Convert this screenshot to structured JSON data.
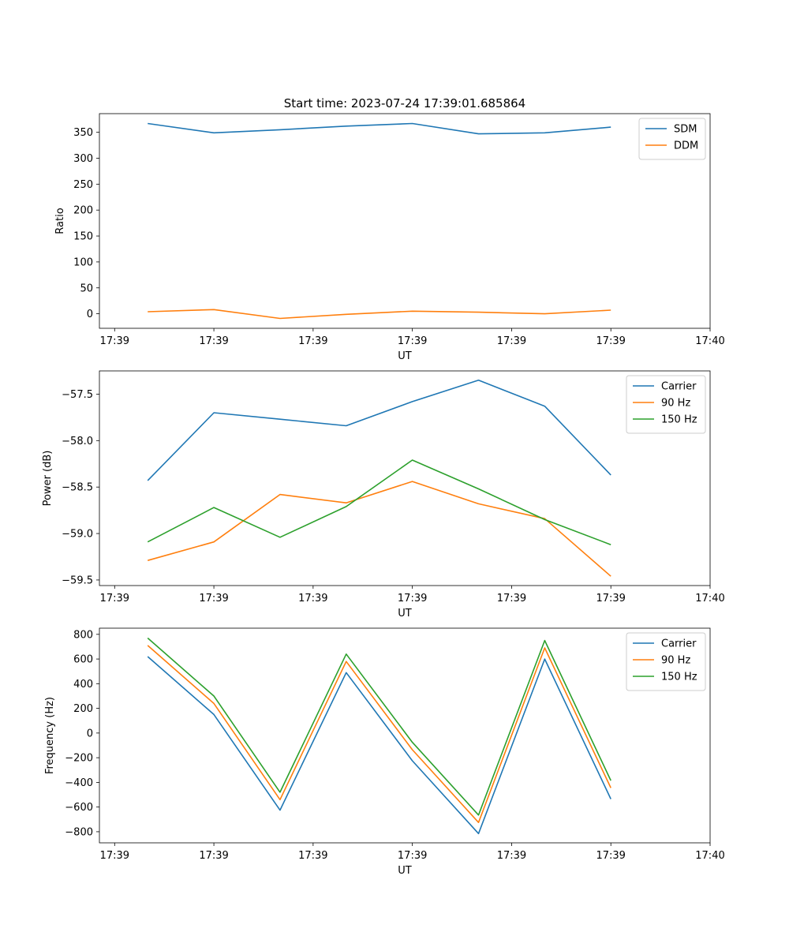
{
  "figure": {
    "title": "Start time: 2023-07-24 17:39:01.685864"
  },
  "colors": {
    "blue": "#1f77b4",
    "orange": "#ff7f0e",
    "green": "#2ca02c"
  },
  "chart_data": [
    {
      "type": "line",
      "title": "Start time: 2023-07-24 17:39:01.685864",
      "xlabel": "UT",
      "ylabel": "Ratio",
      "x": [
        1,
        2,
        3,
        4,
        5,
        6,
        7,
        8
      ],
      "xlim": [
        0.27,
        9.5
      ],
      "ylim": [
        -28,
        386
      ],
      "yticks": [
        0,
        50,
        100,
        150,
        200,
        250,
        300,
        350
      ],
      "xtick_positions": [
        0.5,
        2.0,
        3.5,
        5.0,
        6.5,
        8.0,
        9.5
      ],
      "xtick_labels": [
        "17:39",
        "17:39",
        "17:39",
        "17:39",
        "17:39",
        "17:39",
        "17:40"
      ],
      "legend": "upper right",
      "series": [
        {
          "name": "SDM",
          "color": "#1f77b4",
          "values": [
            367,
            349,
            355,
            362,
            367,
            347,
            349,
            360
          ]
        },
        {
          "name": "DDM",
          "color": "#ff7f0e",
          "values": [
            4,
            8,
            -9,
            -1,
            5,
            3,
            0,
            7
          ]
        }
      ]
    },
    {
      "type": "line",
      "title": "",
      "xlabel": "UT",
      "ylabel": "Power (dB)",
      "x": [
        1,
        2,
        3,
        4,
        5,
        6,
        7,
        8
      ],
      "xlim": [
        0.27,
        9.5
      ],
      "ylim": [
        -59.56,
        -57.25
      ],
      "yticks": [
        -59.5,
        -59.0,
        -58.5,
        -58.0,
        -57.5
      ],
      "ytick_labels": [
        "−59.5",
        "−59.0",
        "−58.5",
        "−58.0",
        "−57.5"
      ],
      "xtick_positions": [
        0.5,
        2.0,
        3.5,
        5.0,
        6.5,
        8.0,
        9.5
      ],
      "xtick_labels": [
        "17:39",
        "17:39",
        "17:39",
        "17:39",
        "17:39",
        "17:39",
        "17:40"
      ],
      "legend": "upper right",
      "series": [
        {
          "name": "Carrier",
          "color": "#1f77b4",
          "values": [
            -58.43,
            -57.7,
            -57.77,
            -57.84,
            -57.58,
            -57.35,
            -57.63,
            -58.37
          ]
        },
        {
          "name": "90 Hz",
          "color": "#ff7f0e",
          "values": [
            -59.29,
            -59.09,
            -58.58,
            -58.67,
            -58.44,
            -58.68,
            -58.84,
            -59.46
          ]
        },
        {
          "name": "150 Hz",
          "color": "#2ca02c",
          "values": [
            -59.09,
            -58.72,
            -59.04,
            -58.71,
            -58.21,
            -58.52,
            -58.85,
            -59.12
          ]
        }
      ]
    },
    {
      "type": "line",
      "title": "",
      "xlabel": "UT",
      "ylabel": "Frequency (Hz)",
      "x": [
        1,
        2,
        3,
        4,
        5,
        6,
        7,
        8
      ],
      "xlim": [
        0.27,
        9.5
      ],
      "ylim": [
        -890,
        850
      ],
      "yticks": [
        -800,
        -600,
        -400,
        -200,
        0,
        200,
        400,
        600,
        800
      ],
      "ytick_labels": [
        "−800",
        "−600",
        "−400",
        "−200",
        "0",
        "200",
        "400",
        "600",
        "800"
      ],
      "xtick_positions": [
        0.5,
        2.0,
        3.5,
        5.0,
        6.5,
        8.0,
        9.5
      ],
      "xtick_labels": [
        "17:39",
        "17:39",
        "17:39",
        "17:39",
        "17:39",
        "17:39",
        "17:40"
      ],
      "legend": "upper right",
      "series": [
        {
          "name": "Carrier",
          "color": "#1f77b4",
          "values": [
            620,
            150,
            -625,
            490,
            -225,
            -815,
            600,
            -535
          ]
        },
        {
          "name": "90 Hz",
          "color": "#ff7f0e",
          "values": [
            710,
            240,
            -540,
            580,
            -135,
            -725,
            690,
            -445
          ]
        },
        {
          "name": "150 Hz",
          "color": "#2ca02c",
          "values": [
            770,
            300,
            -480,
            640,
            -75,
            -665,
            750,
            -385
          ]
        }
      ]
    }
  ]
}
